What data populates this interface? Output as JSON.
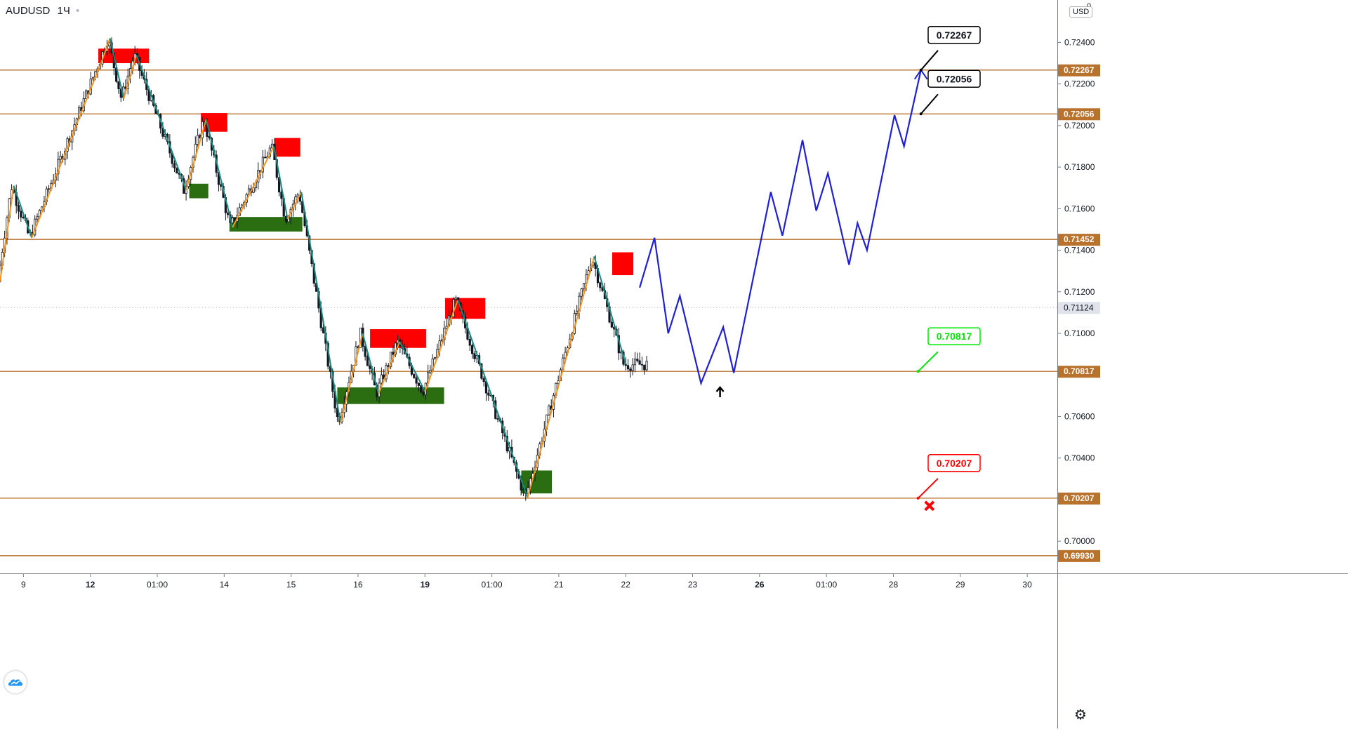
{
  "header": {
    "symbol": "AUDUSD",
    "timeframe": "1Ч",
    "currency": "USD",
    "top_axis_value": "0"
  },
  "colors": {
    "level_line": "#b8722c",
    "level_label_bg": "#b8722c",
    "candle": "#131722",
    "zigzag_up": "#f7931a",
    "zigzag_down": "#1b8a7e",
    "resistance_box": "#ff0000",
    "support_box": "#2b6e12",
    "projection": "#1f1fd6",
    "current_line": "#b2b5be",
    "callout_black": "#000000",
    "callout_green": "#00e600",
    "callout_red": "#ff0000"
  },
  "chart_data": {
    "type": "line",
    "title": "",
    "xlabel": "",
    "ylabel": "",
    "ylim": [
      0.69845,
      0.72604
    ],
    "y_ticks": [
      "0.72400",
      "0.72200",
      "0.72000",
      "0.71800",
      "0.71600",
      "0.71400",
      "0.71200",
      "0.71000",
      "0.70800",
      "0.70600",
      "0.70400",
      "0.70200",
      "0.70000"
    ],
    "x_ticks": [
      "9",
      "12",
      "01:00",
      "14",
      "15",
      "16",
      "19",
      "01:00",
      "21",
      "22",
      "23",
      "26",
      "01:00",
      "28",
      "29",
      "30"
    ],
    "x_tick_bold": [
      "12",
      "19",
      "26"
    ],
    "levels": [
      {
        "label": "0.72267",
        "value": 0.72267
      },
      {
        "label": "0.72056",
        "value": 0.72056
      },
      {
        "label": "0.71452",
        "value": 0.71452
      },
      {
        "label": "0.70817",
        "value": 0.70817
      },
      {
        "label": "0.70207",
        "value": 0.70207
      },
      {
        "label": "0.69930",
        "value": 0.6993
      }
    ],
    "current_price": {
      "label": "0.71124",
      "value": 0.71124
    },
    "series": [
      {
        "values": [
          0.7125,
          0.7138,
          0.7168,
          0.7148,
          0.7228,
          0.7242,
          0.7213,
          0.7233,
          0.7168,
          0.7195,
          0.7165,
          0.7188,
          0.7153,
          0.7165,
          0.715,
          0.7168,
          0.708,
          0.7065,
          0.7098,
          0.7075,
          0.7095,
          0.7072,
          0.711,
          0.7085,
          0.705,
          0.7022,
          0.707,
          0.7045,
          0.708,
          0.7125,
          0.7102,
          0.7117,
          0.7108
        ]
      }
    ],
    "zigzag": [
      {
        "x": 0.0,
        "y": 0.7125
      },
      {
        "x": 0.013,
        "y": 0.7171
      },
      {
        "x": 0.03,
        "y": 0.7146
      },
      {
        "x": 0.097,
        "y": 0.7232
      },
      {
        "x": 0.104,
        "y": 0.7242
      },
      {
        "x": 0.117,
        "y": 0.7213
      },
      {
        "x": 0.129,
        "y": 0.7234
      },
      {
        "x": 0.176,
        "y": 0.7169
      },
      {
        "x": 0.195,
        "y": 0.7203
      },
      {
        "x": 0.22,
        "y": 0.7151
      },
      {
        "x": 0.259,
        "y": 0.719
      },
      {
        "x": 0.272,
        "y": 0.7155
      },
      {
        "x": 0.285,
        "y": 0.7168
      },
      {
        "x": 0.322,
        "y": 0.7057
      },
      {
        "x": 0.343,
        "y": 0.71
      },
      {
        "x": 0.358,
        "y": 0.7071
      },
      {
        "x": 0.378,
        "y": 0.7096
      },
      {
        "x": 0.402,
        "y": 0.7072
      },
      {
        "x": 0.433,
        "y": 0.7116
      },
      {
        "x": 0.499,
        "y": 0.7021
      },
      {
        "x": 0.562,
        "y": 0.7137
      },
      {
        "x": 0.592,
        "y": 0.7085
      }
    ],
    "projection": [
      {
        "x": 0.605,
        "y": 0.7122
      },
      {
        "x": 0.619,
        "y": 0.7146
      },
      {
        "x": 0.632,
        "y": 0.71
      },
      {
        "x": 0.643,
        "y": 0.7118
      },
      {
        "x": 0.663,
        "y": 0.7076
      },
      {
        "x": 0.684,
        "y": 0.7103
      },
      {
        "x": 0.694,
        "y": 0.7081
      },
      {
        "x": 0.729,
        "y": 0.7168
      },
      {
        "x": 0.74,
        "y": 0.7147
      },
      {
        "x": 0.759,
        "y": 0.7193
      },
      {
        "x": 0.772,
        "y": 0.7159
      },
      {
        "x": 0.783,
        "y": 0.7177
      },
      {
        "x": 0.803,
        "y": 0.7133
      },
      {
        "x": 0.811,
        "y": 0.7153
      },
      {
        "x": 0.82,
        "y": 0.714
      },
      {
        "x": 0.846,
        "y": 0.7205
      },
      {
        "x": 0.855,
        "y": 0.719
      },
      {
        "x": 0.871,
        "y": 0.72267
      }
    ],
    "resistance_zones": [
      {
        "x0": 0.093,
        "x1": 0.141,
        "y0": 0.723,
        "y1": 0.7237
      },
      {
        "x0": 0.19,
        "x1": 0.215,
        "y0": 0.7197,
        "y1": 0.7206
      },
      {
        "x0": 0.26,
        "x1": 0.284,
        "y0": 0.7185,
        "y1": 0.7194
      },
      {
        "x0": 0.35,
        "x1": 0.403,
        "y0": 0.7093,
        "y1": 0.7102
      },
      {
        "x0": 0.421,
        "x1": 0.459,
        "y0": 0.7107,
        "y1": 0.7117
      },
      {
        "x0": 0.579,
        "x1": 0.599,
        "y0": 0.7128,
        "y1": 0.7139
      }
    ],
    "support_zones": [
      {
        "x0": 0.179,
        "x1": 0.197,
        "y0": 0.7165,
        "y1": 0.7172
      },
      {
        "x0": 0.217,
        "x1": 0.286,
        "y0": 0.7149,
        "y1": 0.7156
      },
      {
        "x0": 0.319,
        "x1": 0.42,
        "y0": 0.7066,
        "y1": 0.7074
      },
      {
        "x0": 0.493,
        "x1": 0.522,
        "y0": 0.7023,
        "y1": 0.7034
      }
    ],
    "callouts": [
      {
        "label": "0.72267",
        "value": 0.72267,
        "style": "black"
      },
      {
        "label": "0.72056",
        "value": 0.72056,
        "style": "black"
      },
      {
        "label": "0.70817",
        "value": 0.70817,
        "style": "green"
      },
      {
        "label": "0.70207",
        "value": 0.70207,
        "style": "red"
      }
    ],
    "markers": [
      {
        "kind": "arrow-up",
        "x": 0.681,
        "y": 0.7074
      },
      {
        "kind": "stop-cross",
        "x": 0.879,
        "y": 0.7017
      }
    ]
  }
}
